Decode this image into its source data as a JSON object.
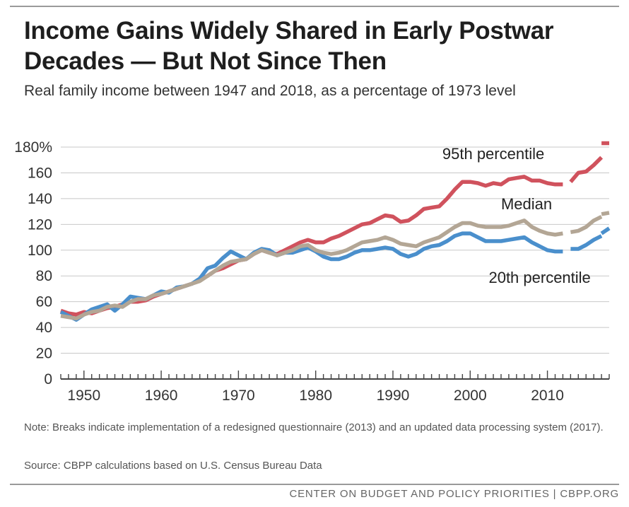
{
  "title": "Income Gains Widely Shared in Early Postwar Decades — But Not Since Then",
  "subtitle": "Real family income between 1947 and 2018, as a percentage of 1973 level",
  "note": "Note: Breaks indicate implementation of a redesigned questionnaire (2013) and an updated data processing system (2017).",
  "source": "Source: CBPP calculations based on U.S. Census Bureau Data",
  "footer": "CENTER ON BUDGET AND POLICY PRIORITIES | CBPP.ORG",
  "chart_data": {
    "type": "line",
    "xlabel": "",
    "ylabel": "",
    "xlim": [
      1947,
      2018
    ],
    "ylim": [
      0,
      180
    ],
    "y_ticks": [
      {
        "value": 180,
        "label": "180%"
      },
      {
        "value": 160,
        "label": "160"
      },
      {
        "value": 140,
        "label": "140"
      },
      {
        "value": 120,
        "label": "120"
      },
      {
        "value": 100,
        "label": "100"
      },
      {
        "value": 80,
        "label": "80"
      },
      {
        "value": 60,
        "label": "60"
      },
      {
        "value": 40,
        "label": "40"
      },
      {
        "value": 20,
        "label": "20"
      },
      {
        "value": 0,
        "label": "0"
      }
    ],
    "x_ticks": [
      {
        "value": 1950,
        "label": "1950"
      },
      {
        "value": 1960,
        "label": "1960"
      },
      {
        "value": 1970,
        "label": "1970"
      },
      {
        "value": 1980,
        "label": "1980"
      },
      {
        "value": 1990,
        "label": "1990"
      },
      {
        "value": 2000,
        "label": "2000"
      },
      {
        "value": 2010,
        "label": "2010"
      }
    ],
    "grid": true,
    "series": [
      {
        "name": "95th percentile",
        "color": "#d0525d",
        "label_pos": [
          2003,
          175
        ],
        "segments": [
          {
            "x": [
              1947,
              1948,
              1949,
              1950,
              1951,
              1952,
              1953,
              1954,
              1955,
              1956,
              1957,
              1958,
              1959,
              1960,
              1961,
              1962,
              1963,
              1964,
              1965,
              1966,
              1967,
              1968,
              1969,
              1970,
              1971,
              1972,
              1973,
              1974,
              1975,
              1976,
              1977,
              1978,
              1979,
              1980,
              1981,
              1982,
              1983,
              1984,
              1985,
              1986,
              1987,
              1988,
              1989,
              1990,
              1991,
              1992,
              1993,
              1994,
              1995,
              1996,
              1997,
              1998,
              1999,
              2000,
              2001,
              2002,
              2003,
              2004,
              2005,
              2006,
              2007,
              2008,
              2009,
              2010,
              2011,
              2012
            ],
            "y": [
              53,
              51,
              50,
              52,
              51,
              53,
              55,
              56,
              58,
              60,
              60,
              61,
              64,
              66,
              68,
              70,
              72,
              74,
              77,
              80,
              84,
              86,
              89,
              92,
              93,
              97,
              100,
              98,
              97,
              100,
              103,
              106,
              108,
              106,
              106,
              109,
              111,
              114,
              117,
              120,
              121,
              124,
              127,
              126,
              122,
              123,
              127,
              132,
              133,
              134,
              140,
              147,
              153,
              153,
              152,
              150,
              152,
              151,
              155,
              156,
              157,
              154,
              154,
              152,
              151,
              151
            ]
          },
          {
            "x": [
              2013,
              2014,
              2015,
              2016,
              2017
            ],
            "y": [
              153,
              160,
              161,
              166,
              172
            ]
          },
          {
            "x": [
              2017,
              2018
            ],
            "y": [
              183,
              183
            ]
          }
        ]
      },
      {
        "name": "Median",
        "color": "#b3a695",
        "label_pos": [
          2004,
          136
        ],
        "segments": [
          {
            "x": [
              1947,
              1948,
              1949,
              1950,
              1951,
              1952,
              1953,
              1954,
              1955,
              1956,
              1957,
              1958,
              1959,
              1960,
              1961,
              1962,
              1963,
              1964,
              1965,
              1966,
              1967,
              1968,
              1969,
              1970,
              1971,
              1972,
              1973,
              1974,
              1975,
              1976,
              1977,
              1978,
              1979,
              1980,
              1981,
              1982,
              1983,
              1984,
              1985,
              1986,
              1987,
              1988,
              1989,
              1990,
              1991,
              1992,
              1993,
              1994,
              1995,
              1996,
              1997,
              1998,
              1999,
              2000,
              2001,
              2002,
              2003,
              2004,
              2005,
              2006,
              2007,
              2008,
              2009,
              2010,
              2011,
              2012
            ],
            "y": [
              49,
              48,
              47,
              50,
              52,
              53,
              56,
              57,
              56,
              60,
              62,
              62,
              65,
              66,
              68,
              70,
              72,
              74,
              76,
              80,
              84,
              88,
              91,
              92,
              93,
              97,
              100,
              98,
              96,
              98,
              100,
              103,
              104,
              100,
              98,
              97,
              98,
              100,
              103,
              106,
              107,
              108,
              110,
              108,
              105,
              104,
              103,
              106,
              108,
              110,
              114,
              118,
              121,
              121,
              119,
              118,
              118,
              118,
              119,
              121,
              123,
              118,
              115,
              113,
              112,
              113
            ]
          },
          {
            "x": [
              2013,
              2014,
              2015,
              2016,
              2017
            ],
            "y": [
              114,
              115,
              118,
              123,
              126
            ]
          },
          {
            "x": [
              2017,
              2018
            ],
            "y": [
              128,
              129
            ]
          }
        ]
      },
      {
        "name": "20th percentile",
        "color": "#4a8fcc",
        "label_pos": [
          2009,
          79
        ],
        "segments": [
          {
            "x": [
              1947,
              1948,
              1949,
              1950,
              1951,
              1952,
              1953,
              1954,
              1955,
              1956,
              1957,
              1958,
              1959,
              1960,
              1961,
              1962,
              1963,
              1964,
              1965,
              1966,
              1967,
              1968,
              1969,
              1970,
              1971,
              1972,
              1973,
              1974,
              1975,
              1976,
              1977,
              1978,
              1979,
              1980,
              1981,
              1982,
              1983,
              1984,
              1985,
              1986,
              1987,
              1988,
              1989,
              1990,
              1991,
              1992,
              1993,
              1994,
              1995,
              1996,
              1997,
              1998,
              1999,
              2000,
              2001,
              2002,
              2003,
              2004,
              2005,
              2006,
              2007,
              2008,
              2009,
              2010,
              2011,
              2012
            ],
            "y": [
              52,
              49,
              46,
              50,
              54,
              56,
              58,
              53,
              58,
              64,
              63,
              62,
              65,
              68,
              67,
              71,
              72,
              74,
              78,
              86,
              88,
              94,
              99,
              96,
              93,
              98,
              101,
              100,
              96,
              98,
              98,
              100,
              102,
              99,
              95,
              93,
              93,
              95,
              98,
              100,
              100,
              101,
              102,
              101,
              97,
              95,
              97,
              101,
              103,
              104,
              107,
              111,
              113,
              113,
              110,
              107,
              107,
              107,
              108,
              109,
              110,
              106,
              103,
              100,
              99,
              99
            ]
          },
          {
            "x": [
              2013,
              2014,
              2015,
              2016,
              2017
            ],
            "y": [
              101,
              101,
              104,
              108,
              111
            ]
          },
          {
            "x": [
              2017,
              2018
            ],
            "y": [
              113,
              117
            ]
          }
        ]
      }
    ]
  }
}
